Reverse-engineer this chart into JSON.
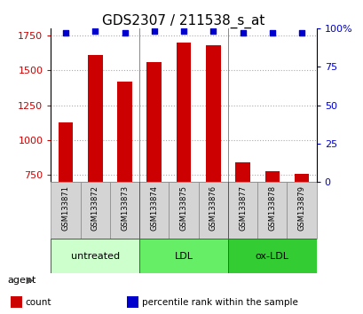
{
  "title": "GDS2307 / 211538_s_at",
  "samples": [
    "GSM133871",
    "GSM133872",
    "GSM133873",
    "GSM133874",
    "GSM133875",
    "GSM133876",
    "GSM133877",
    "GSM133878",
    "GSM133879"
  ],
  "counts": [
    1130,
    1610,
    1420,
    1560,
    1700,
    1680,
    840,
    780,
    760
  ],
  "percentiles": [
    97,
    98,
    97,
    98,
    98,
    98,
    97,
    97,
    97
  ],
  "ylim_left": [
    700,
    1800
  ],
  "ylim_right": [
    0,
    100
  ],
  "yticks_left": [
    750,
    1000,
    1250,
    1500,
    1750
  ],
  "yticks_right": [
    0,
    25,
    50,
    75,
    100
  ],
  "bar_color": "#cc0000",
  "dot_color": "#0000cc",
  "groups": [
    {
      "label": "untreated",
      "indices": [
        0,
        1,
        2
      ],
      "color": "#ccffcc"
    },
    {
      "label": "LDL",
      "indices": [
        3,
        4,
        5
      ],
      "color": "#66ee66"
    },
    {
      "label": "ox-LDL",
      "indices": [
        6,
        7,
        8
      ],
      "color": "#33cc33"
    }
  ],
  "bar_width": 0.5,
  "grid_color": "#aaaaaa",
  "bg_color": "#ffffff",
  "agent_label": "agent",
  "legend_count_color": "#cc0000",
  "legend_pct_color": "#0000cc",
  "title_fontsize": 11,
  "tick_fontsize": 8,
  "sample_fontsize": 6,
  "group_fontsize": 8,
  "legend_fontsize": 7.5
}
